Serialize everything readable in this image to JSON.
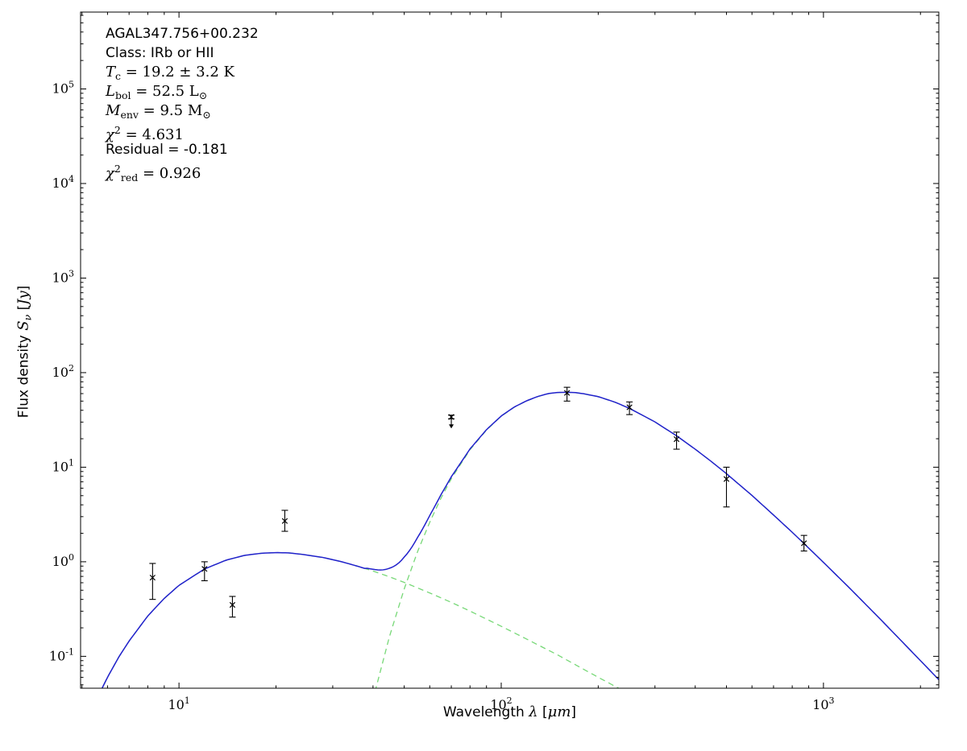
{
  "figure": {
    "background": "#ffffff",
    "annotation_lines": [
      {
        "segments": [
          {
            "t": "AGAL347.756+00.232",
            "c": "sans"
          }
        ]
      },
      {
        "segments": [
          {
            "t": "Class: IRb or HII",
            "c": "sans"
          }
        ]
      },
      {
        "segments": [
          {
            "t": "T",
            "c": "mit"
          },
          {
            "t": "c",
            "c": "msub"
          },
          {
            "t": " = 19.2 ± 3.2 K",
            "c": "mrm"
          }
        ]
      },
      {
        "segments": [
          {
            "t": "L",
            "c": "mit"
          },
          {
            "t": "bol",
            "c": "msub"
          },
          {
            "t": " = 52.5 L",
            "c": "mrm"
          },
          {
            "t": "⊙",
            "c": "msub"
          }
        ]
      },
      {
        "segments": [
          {
            "t": "M",
            "c": "mit"
          },
          {
            "t": "env",
            "c": "msub"
          },
          {
            "t": " = 9.5 M",
            "c": "mrm"
          },
          {
            "t": "⊙",
            "c": "msub"
          }
        ]
      },
      {
        "segments": [
          {
            "t": "χ",
            "c": "mit"
          },
          {
            "t": "2",
            "c": "msup"
          },
          {
            "t": " = 4.631",
            "c": "mrm"
          }
        ]
      },
      {
        "segments": [
          {
            "t": "Residual = -0.181",
            "c": "sans"
          }
        ]
      },
      {
        "segments": [
          {
            "t": "χ",
            "c": "mit"
          },
          {
            "t": "2",
            "c": "msup"
          },
          {
            "t": "red",
            "c": "msub"
          },
          {
            "t": " = 0.926",
            "c": "mrm"
          }
        ]
      }
    ]
  },
  "chart_data": {
    "type": "line",
    "title": "",
    "x_scale": "log",
    "y_scale": "log",
    "xlim": [
      4.95,
      2280
    ],
    "ylim": [
      0.046,
      650000
    ],
    "xlabel_segments": [
      {
        "t": "Wavelength ",
        "c": "sans"
      },
      {
        "t": "λ",
        "c": "mit"
      },
      {
        "t": " [",
        "c": "sans"
      },
      {
        "t": "μm",
        "c": "mit"
      },
      {
        "t": "]",
        "c": "sans"
      }
    ],
    "ylabel_segments": [
      {
        "t": "Flux density ",
        "c": "sans"
      },
      {
        "t": "S",
        "c": "mit"
      },
      {
        "t": "ν",
        "c": "msubi"
      },
      {
        "t": " [",
        "c": "sans"
      },
      {
        "t": "Jy",
        "c": "mit"
      },
      {
        "t": "]",
        "c": "sans"
      }
    ],
    "x_major_tick_exponents": [
      1,
      2,
      3
    ],
    "y_major_tick_exponents": [
      -1,
      0,
      1,
      2,
      3,
      4,
      5
    ],
    "grid": false,
    "legend": null,
    "colors": {
      "model_total": "#2020cc",
      "model_components": "#77d877",
      "data_points": "#000000",
      "axes": "#000000"
    },
    "series": [
      {
        "name": "warm-component",
        "style": "dashed",
        "role": "component",
        "points": [
          [
            5.5,
            0.033
          ],
          [
            6,
            0.06
          ],
          [
            6.5,
            0.098
          ],
          [
            7,
            0.145
          ],
          [
            8,
            0.267
          ],
          [
            9,
            0.41
          ],
          [
            10,
            0.563
          ],
          [
            12,
            0.839
          ],
          [
            14,
            1.04
          ],
          [
            16,
            1.17
          ],
          [
            18,
            1.23
          ],
          [
            20,
            1.25
          ],
          [
            22,
            1.24
          ],
          [
            24,
            1.2
          ],
          [
            28,
            1.11
          ],
          [
            32,
            1.0
          ],
          [
            36,
            0.893
          ],
          [
            40,
            0.798
          ],
          [
            45,
            0.693
          ],
          [
            50,
            0.605
          ],
          [
            60,
            0.468
          ],
          [
            70,
            0.372
          ],
          [
            80,
            0.301
          ],
          [
            100,
            0.208
          ],
          [
            120,
            0.152
          ],
          [
            150,
            0.103
          ],
          [
            200,
            0.06
          ],
          [
            250,
            0.04
          ],
          [
            300,
            0.028
          ]
        ]
      },
      {
        "name": "cold-component",
        "style": "dashed",
        "role": "component",
        "points": [
          [
            38,
            0.017
          ],
          [
            40,
            0.035
          ],
          [
            45,
            0.162
          ],
          [
            50,
            0.517
          ],
          [
            55,
            1.28
          ],
          [
            60,
            2.62
          ],
          [
            65,
            4.7
          ],
          [
            70,
            7.56
          ],
          [
            80,
            15.3
          ],
          [
            90,
            24.7
          ],
          [
            100,
            34.6
          ],
          [
            110,
            43.3
          ],
          [
            120,
            50.3
          ],
          [
            130,
            55.9
          ],
          [
            140,
            60.0
          ],
          [
            150,
            61.6
          ],
          [
            160,
            61.9
          ],
          [
            170,
            61.4
          ],
          [
            180,
            59.8
          ],
          [
            200,
            55.7
          ],
          [
            225,
            48.8
          ],
          [
            250,
            41.9
          ],
          [
            300,
            30.1
          ],
          [
            350,
            21.5
          ],
          [
            400,
            15.5
          ],
          [
            450,
            11.4
          ],
          [
            500,
            8.54
          ],
          [
            600,
            5.03
          ],
          [
            700,
            3.12
          ],
          [
            800,
            2.05
          ],
          [
            870,
            1.56
          ],
          [
            1000,
            0.985
          ],
          [
            1200,
            0.535
          ],
          [
            1500,
            0.248
          ],
          [
            2000,
            0.09
          ],
          [
            2300,
            0.055
          ]
        ]
      }
    ],
    "total_model": {
      "name": "model-total",
      "style": "solid",
      "definition": "sum-of-components"
    },
    "data_points": [
      {
        "wavelength": 8.28,
        "flux": 0.68,
        "err_minus": 0.28,
        "err_plus": 0.28
      },
      {
        "wavelength": 12.0,
        "flux": 0.84,
        "err_minus": 0.21,
        "err_plus": 0.16
      },
      {
        "wavelength": 14.65,
        "flux": 0.35,
        "err_minus": 0.09,
        "err_plus": 0.08
      },
      {
        "wavelength": 21.3,
        "flux": 2.7,
        "err_minus": 0.6,
        "err_plus": 0.8
      },
      {
        "wavelength": 70.0,
        "flux": 34.0,
        "err_minus": 1.5,
        "err_plus": 1.5,
        "upper_limit": true
      },
      {
        "wavelength": 160.0,
        "flux": 61.0,
        "err_minus": 11.0,
        "err_plus": 9.0
      },
      {
        "wavelength": 250.0,
        "flux": 43.0,
        "err_minus": 7.0,
        "err_plus": 6.0
      },
      {
        "wavelength": 350.0,
        "flux": 19.8,
        "err_minus": 4.3,
        "err_plus": 3.7
      },
      {
        "wavelength": 500.0,
        "flux": 7.5,
        "err_minus": 3.7,
        "err_plus": 2.5
      },
      {
        "wavelength": 870.0,
        "flux": 1.57,
        "err_minus": 0.27,
        "err_plus": 0.33
      }
    ]
  }
}
